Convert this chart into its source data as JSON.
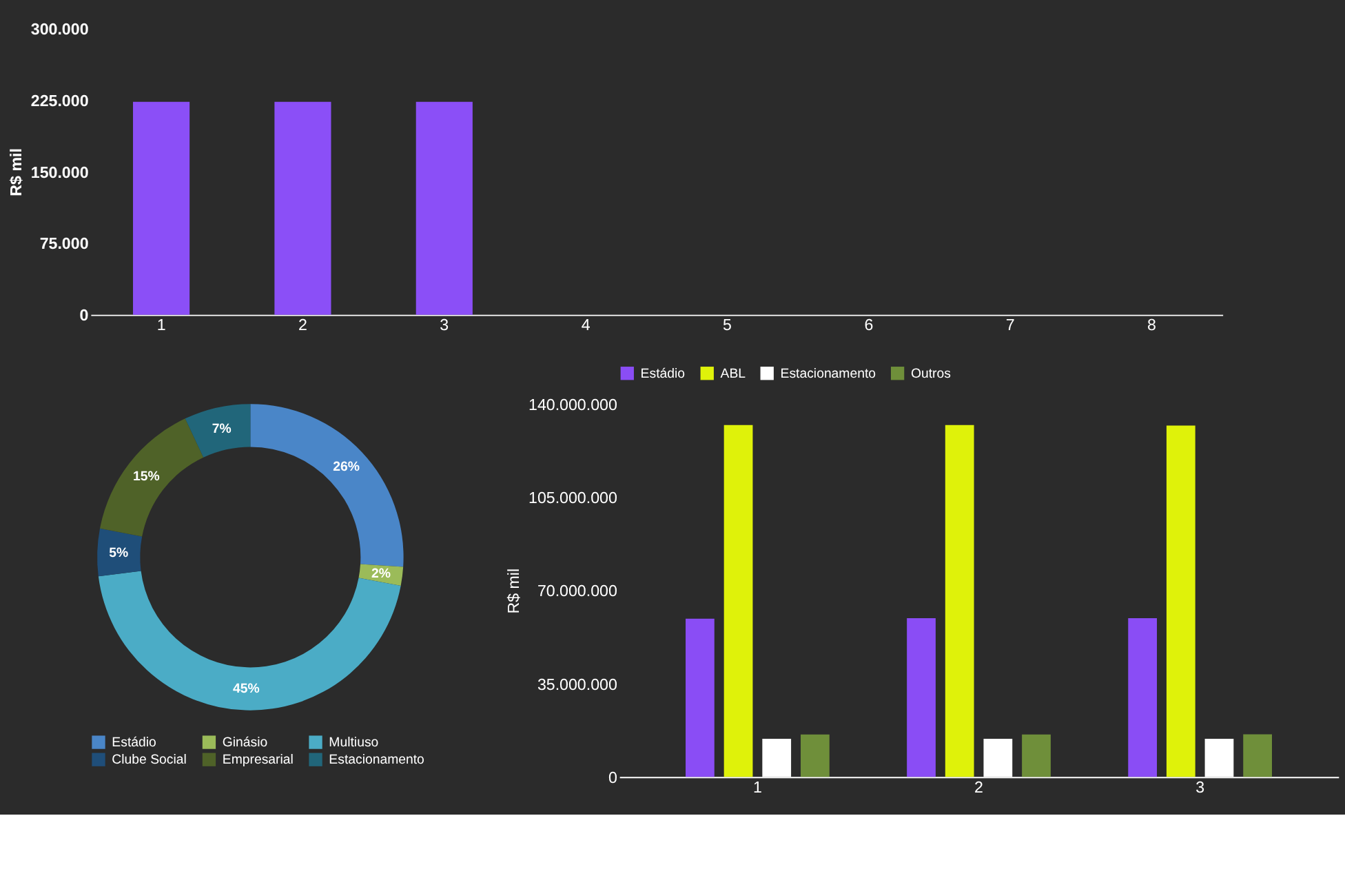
{
  "chart_data": [
    {
      "type": "bar",
      "ylabel": "R$ mil",
      "categories": [
        "1",
        "2",
        "3",
        "4",
        "5",
        "6",
        "7",
        "8"
      ],
      "series": [
        {
          "color": "#8b4ff7",
          "values": [
            223000,
            223000,
            223000,
            null,
            null,
            null,
            null,
            null
          ]
        }
      ],
      "ylim": [
        0,
        300000
      ],
      "yticks": [
        0,
        {
          "value": 75000,
          "label": "75.000"
        },
        {
          "value": 150000,
          "label": "150.000"
        },
        {
          "value": 225000,
          "label": "225.000"
        },
        {
          "value": 300000,
          "label": "300.000"
        }
      ],
      "grid": false,
      "legend": false
    },
    {
      "type": "donut",
      "categories": [
        "Estádio",
        "Ginásio",
        "Multiuso",
        "Clube Social",
        "Empresarial",
        "Estacionamento"
      ],
      "values": [
        26,
        2,
        45,
        5,
        15,
        7
      ],
      "value_labels": [
        "26%",
        "2%",
        "45%",
        "5%",
        "15%",
        "7%"
      ],
      "colors": [
        "#4a86c8",
        "#9bbb59",
        "#4bacc6",
        "#1f4e79",
        "#4f6228",
        "#21667a"
      ],
      "legend": "bottom"
    },
    {
      "type": "bar",
      "ylabel": "R$ mil",
      "categories": [
        "1",
        "2",
        "3"
      ],
      "series": [
        {
          "name": "Estádio",
          "color": "#8a4df5",
          "values": [
            59400000,
            59600000,
            59600000
          ]
        },
        {
          "name": "ABL",
          "color": "#dff20a",
          "values": [
            132100000,
            132100000,
            131900000
          ]
        },
        {
          "name": "Estacionamento",
          "color": "#ffffff",
          "values": [
            14300000,
            14300000,
            14300000
          ]
        },
        {
          "name": "Outros",
          "color": "#6f8f3a",
          "values": [
            15900000,
            15900000,
            16000000
          ]
        }
      ],
      "ylim": [
        0,
        140000000
      ],
      "yticks": [
        0,
        {
          "value": 35000000,
          "label": "35.000.000"
        },
        {
          "value": 70000000,
          "label": "70.000.000"
        },
        {
          "value": 105000000,
          "label": "105.000.000"
        },
        {
          "value": 140000000,
          "label": "140.000.000"
        }
      ],
      "grid": false,
      "legend": "top"
    }
  ]
}
